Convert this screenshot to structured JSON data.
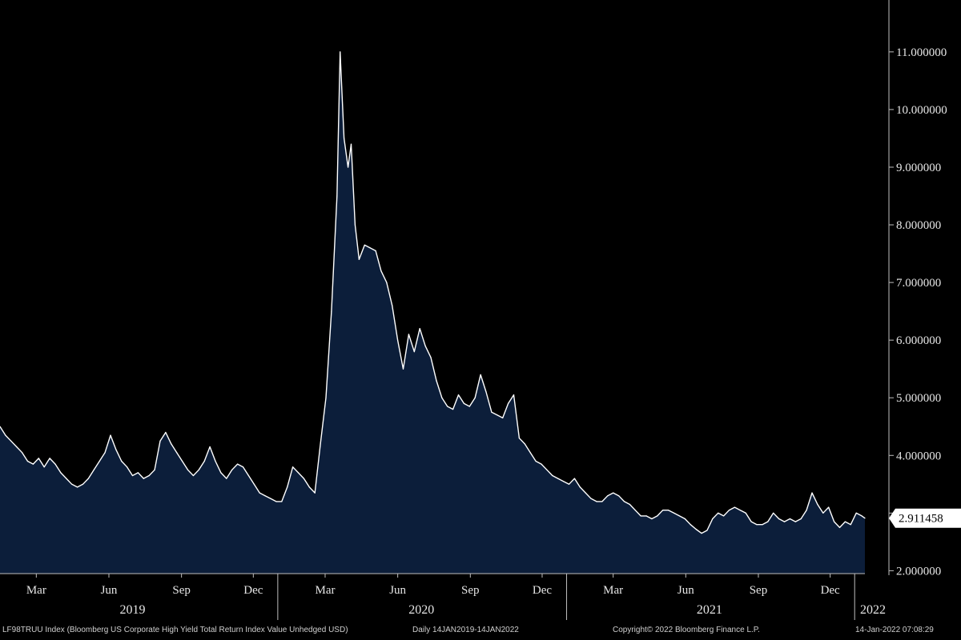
{
  "chart_data": {
    "type": "area",
    "series": [
      {
        "name": "",
        "color": "#ffffff",
        "fill": "#0c1e3a"
      }
    ],
    "y_ticks": [
      "2.000000",
      "3.000000",
      "4.000000",
      "5.000000",
      "6.000000",
      "7.000000",
      "8.000000",
      "9.000000",
      "10.000000",
      "11.000000"
    ],
    "ylim": [
      1.95,
      11.9
    ],
    "xlim": [
      "2019-01-14",
      "2022-01-14"
    ],
    "month_ticks": [
      {
        "label": "Mar",
        "date": "2019-03-01"
      },
      {
        "label": "Jun",
        "date": "2019-06-01"
      },
      {
        "label": "Sep",
        "date": "2019-09-01"
      },
      {
        "label": "Dec",
        "date": "2019-12-01"
      },
      {
        "label": "Mar",
        "date": "2020-03-01"
      },
      {
        "label": "Jun",
        "date": "2020-06-01"
      },
      {
        "label": "Sep",
        "date": "2020-09-01"
      },
      {
        "label": "Dec",
        "date": "2020-12-01"
      },
      {
        "label": "Mar",
        "date": "2021-03-01"
      },
      {
        "label": "Jun",
        "date": "2021-06-01"
      },
      {
        "label": "Sep",
        "date": "2021-09-01"
      },
      {
        "label": "Dec",
        "date": "2021-12-01"
      }
    ],
    "year_labels": [
      {
        "label": "2019",
        "date": "2019-07-01"
      },
      {
        "label": "2020",
        "date": "2020-07-01"
      },
      {
        "label": "2021",
        "date": "2021-07-01"
      },
      {
        "label": "2022",
        "date": "2022-01-14"
      }
    ],
    "last_value": "2.911458",
    "points": [
      [
        "2019-01-14",
        4.5
      ],
      [
        "2019-01-21",
        4.35
      ],
      [
        "2019-01-28",
        4.25
      ],
      [
        "2019-02-04",
        4.15
      ],
      [
        "2019-02-11",
        4.05
      ],
      [
        "2019-02-18",
        3.9
      ],
      [
        "2019-02-25",
        3.85
      ],
      [
        "2019-03-04",
        3.95
      ],
      [
        "2019-03-11",
        3.8
      ],
      [
        "2019-03-18",
        3.95
      ],
      [
        "2019-03-25",
        3.85
      ],
      [
        "2019-04-01",
        3.7
      ],
      [
        "2019-04-08",
        3.6
      ],
      [
        "2019-04-15",
        3.5
      ],
      [
        "2019-04-22",
        3.45
      ],
      [
        "2019-04-29",
        3.5
      ],
      [
        "2019-05-06",
        3.6
      ],
      [
        "2019-05-13",
        3.75
      ],
      [
        "2019-05-20",
        3.9
      ],
      [
        "2019-05-27",
        4.05
      ],
      [
        "2019-06-03",
        4.35
      ],
      [
        "2019-06-10",
        4.1
      ],
      [
        "2019-06-17",
        3.9
      ],
      [
        "2019-06-24",
        3.8
      ],
      [
        "2019-07-01",
        3.65
      ],
      [
        "2019-07-08",
        3.7
      ],
      [
        "2019-07-15",
        3.6
      ],
      [
        "2019-07-22",
        3.65
      ],
      [
        "2019-07-29",
        3.75
      ],
      [
        "2019-08-05",
        4.25
      ],
      [
        "2019-08-12",
        4.4
      ],
      [
        "2019-08-19",
        4.2
      ],
      [
        "2019-08-26",
        4.05
      ],
      [
        "2019-09-02",
        3.9
      ],
      [
        "2019-09-09",
        3.75
      ],
      [
        "2019-09-16",
        3.65
      ],
      [
        "2019-09-23",
        3.75
      ],
      [
        "2019-09-30",
        3.9
      ],
      [
        "2019-10-07",
        4.15
      ],
      [
        "2019-10-14",
        3.9
      ],
      [
        "2019-10-21",
        3.7
      ],
      [
        "2019-10-28",
        3.6
      ],
      [
        "2019-11-04",
        3.75
      ],
      [
        "2019-11-11",
        3.85
      ],
      [
        "2019-11-18",
        3.8
      ],
      [
        "2019-11-25",
        3.65
      ],
      [
        "2019-12-02",
        3.5
      ],
      [
        "2019-12-09",
        3.35
      ],
      [
        "2019-12-16",
        3.3
      ],
      [
        "2019-12-23",
        3.25
      ],
      [
        "2019-12-30",
        3.2
      ],
      [
        "2020-01-06",
        3.2
      ],
      [
        "2020-01-13",
        3.45
      ],
      [
        "2020-01-20",
        3.8
      ],
      [
        "2020-01-27",
        3.7
      ],
      [
        "2020-02-03",
        3.6
      ],
      [
        "2020-02-10",
        3.45
      ],
      [
        "2020-02-17",
        3.35
      ],
      [
        "2020-02-24",
        4.2
      ],
      [
        "2020-03-02",
        5.0
      ],
      [
        "2020-03-09",
        6.5
      ],
      [
        "2020-03-16",
        8.5
      ],
      [
        "2020-03-20",
        11.0
      ],
      [
        "2020-03-25",
        9.5
      ],
      [
        "2020-03-30",
        9.0
      ],
      [
        "2020-04-03",
        9.4
      ],
      [
        "2020-04-08",
        8.0
      ],
      [
        "2020-04-13",
        7.4
      ],
      [
        "2020-04-20",
        7.65
      ],
      [
        "2020-04-27",
        7.6
      ],
      [
        "2020-05-04",
        7.55
      ],
      [
        "2020-05-11",
        7.2
      ],
      [
        "2020-05-18",
        7.0
      ],
      [
        "2020-05-25",
        6.6
      ],
      [
        "2020-06-01",
        6.0
      ],
      [
        "2020-06-08",
        5.5
      ],
      [
        "2020-06-15",
        6.1
      ],
      [
        "2020-06-22",
        5.8
      ],
      [
        "2020-06-29",
        6.2
      ],
      [
        "2020-07-06",
        5.9
      ],
      [
        "2020-07-13",
        5.7
      ],
      [
        "2020-07-20",
        5.3
      ],
      [
        "2020-07-27",
        5.0
      ],
      [
        "2020-08-03",
        4.85
      ],
      [
        "2020-08-10",
        4.8
      ],
      [
        "2020-08-17",
        5.05
      ],
      [
        "2020-08-24",
        4.9
      ],
      [
        "2020-08-31",
        4.85
      ],
      [
        "2020-09-07",
        5.0
      ],
      [
        "2020-09-14",
        5.4
      ],
      [
        "2020-09-21",
        5.1
      ],
      [
        "2020-09-28",
        4.75
      ],
      [
        "2020-10-05",
        4.7
      ],
      [
        "2020-10-12",
        4.65
      ],
      [
        "2020-10-19",
        4.9
      ],
      [
        "2020-10-26",
        5.05
      ],
      [
        "2020-11-02",
        4.3
      ],
      [
        "2020-11-09",
        4.2
      ],
      [
        "2020-11-16",
        4.05
      ],
      [
        "2020-11-23",
        3.9
      ],
      [
        "2020-11-30",
        3.85
      ],
      [
        "2020-12-07",
        3.75
      ],
      [
        "2020-12-14",
        3.65
      ],
      [
        "2020-12-21",
        3.6
      ],
      [
        "2020-12-28",
        3.55
      ],
      [
        "2021-01-04",
        3.5
      ],
      [
        "2021-01-11",
        3.6
      ],
      [
        "2021-01-18",
        3.45
      ],
      [
        "2021-01-25",
        3.35
      ],
      [
        "2021-02-01",
        3.25
      ],
      [
        "2021-02-08",
        3.2
      ],
      [
        "2021-02-15",
        3.2
      ],
      [
        "2021-02-22",
        3.3
      ],
      [
        "2021-03-01",
        3.35
      ],
      [
        "2021-03-08",
        3.3
      ],
      [
        "2021-03-15",
        3.2
      ],
      [
        "2021-03-22",
        3.15
      ],
      [
        "2021-03-29",
        3.05
      ],
      [
        "2021-04-05",
        2.95
      ],
      [
        "2021-04-12",
        2.95
      ],
      [
        "2021-04-19",
        2.9
      ],
      [
        "2021-04-26",
        2.95
      ],
      [
        "2021-05-03",
        3.05
      ],
      [
        "2021-05-10",
        3.05
      ],
      [
        "2021-05-17",
        3.0
      ],
      [
        "2021-05-24",
        2.95
      ],
      [
        "2021-05-31",
        2.9
      ],
      [
        "2021-06-07",
        2.8
      ],
      [
        "2021-06-14",
        2.72
      ],
      [
        "2021-06-21",
        2.65
      ],
      [
        "2021-06-28",
        2.7
      ],
      [
        "2021-07-05",
        2.9
      ],
      [
        "2021-07-12",
        3.0
      ],
      [
        "2021-07-19",
        2.95
      ],
      [
        "2021-07-26",
        3.05
      ],
      [
        "2021-08-02",
        3.1
      ],
      [
        "2021-08-09",
        3.05
      ],
      [
        "2021-08-16",
        3.0
      ],
      [
        "2021-08-23",
        2.85
      ],
      [
        "2021-08-30",
        2.8
      ],
      [
        "2021-09-06",
        2.8
      ],
      [
        "2021-09-13",
        2.85
      ],
      [
        "2021-09-20",
        3.0
      ],
      [
        "2021-09-27",
        2.9
      ],
      [
        "2021-10-04",
        2.85
      ],
      [
        "2021-10-11",
        2.9
      ],
      [
        "2021-10-18",
        2.85
      ],
      [
        "2021-10-25",
        2.9
      ],
      [
        "2021-11-01",
        3.05
      ],
      [
        "2021-11-08",
        3.35
      ],
      [
        "2021-11-15",
        3.15
      ],
      [
        "2021-11-22",
        3.0
      ],
      [
        "2021-11-29",
        3.1
      ],
      [
        "2021-12-06",
        2.85
      ],
      [
        "2021-12-13",
        2.75
      ],
      [
        "2021-12-20",
        2.85
      ],
      [
        "2021-12-27",
        2.8
      ],
      [
        "2022-01-03",
        3.0
      ],
      [
        "2022-01-10",
        2.95
      ],
      [
        "2022-01-14",
        2.911458
      ]
    ]
  },
  "footer": {
    "security": "LF98TRUU Index (Bloomberg US Corporate High Yield Total Return Index Value Unhedged USD)",
    "range": "Daily 14JAN2019-14JAN2022",
    "copyright": "Copyright© 2022 Bloomberg Finance L.P.",
    "timestamp": "14-Jan-2022 07:08:29"
  }
}
